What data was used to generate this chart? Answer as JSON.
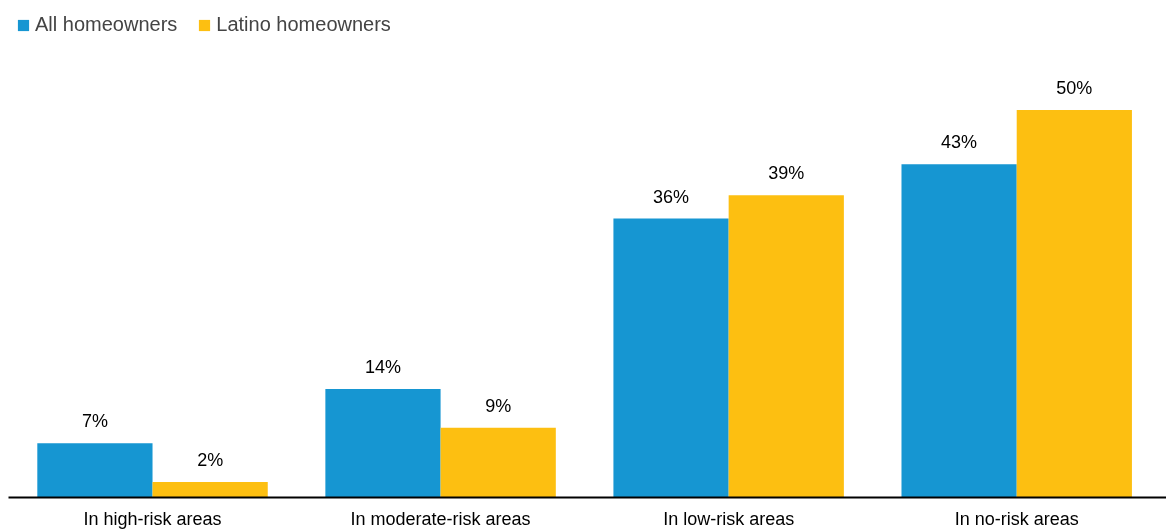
{
  "chart_data": {
    "type": "bar",
    "categories": [
      "In high-risk areas",
      "In moderate-risk areas",
      "In low-risk areas",
      "In no-risk areas"
    ],
    "series": [
      {
        "name": "All homeowners",
        "color": "#1696d2",
        "values": [
          7,
          14,
          36,
          43
        ],
        "value_labels": [
          "7%",
          "14%",
          "36%",
          "43%"
        ]
      },
      {
        "name": "Latino homeowners",
        "color": "#fdbf11",
        "values": [
          2,
          9,
          39,
          50
        ],
        "value_labels": [
          "2%",
          "9%",
          "39%",
          "50%"
        ]
      }
    ],
    "legend": "top left"
  }
}
